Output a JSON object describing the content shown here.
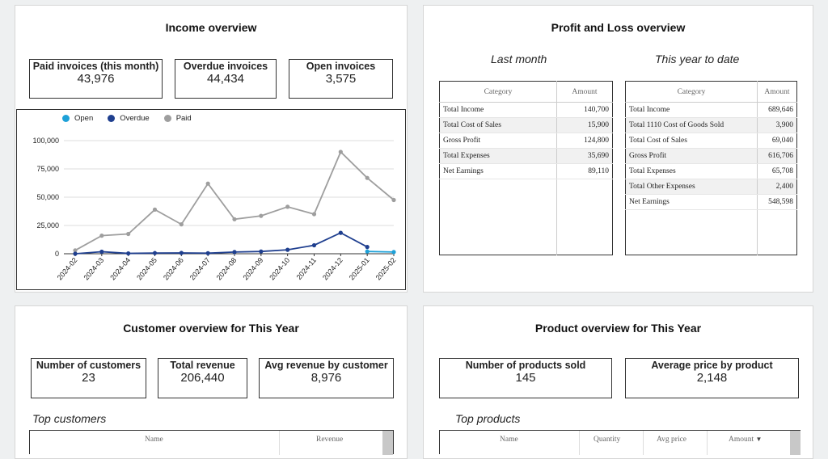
{
  "income": {
    "title": "Income overview",
    "kpis": [
      {
        "label": "Paid invoices (this month)",
        "value": "43,976"
      },
      {
        "label": "Overdue invoices",
        "value": "44,434"
      },
      {
        "label": "Open invoices",
        "value": "3,575"
      }
    ]
  },
  "pl": {
    "title": "Profit and Loss overview",
    "last_month_label": "Last month",
    "ytd_label": "This year to date",
    "col_category": "Category",
    "col_amount": "Amount",
    "last_month": [
      {
        "category": "Total Income",
        "amount": "140,700"
      },
      {
        "category": "Total Cost of Sales",
        "amount": "15,900"
      },
      {
        "category": "Gross Profit",
        "amount": "124,800"
      },
      {
        "category": "Total Expenses",
        "amount": "35,690"
      },
      {
        "category": "Net Earnings",
        "amount": "89,110"
      }
    ],
    "ytd": [
      {
        "category": "Total Income",
        "amount": "689,646"
      },
      {
        "category": "Total 1110 Cost of Goods Sold",
        "amount": "3,900"
      },
      {
        "category": "Total Cost of Sales",
        "amount": "69,040"
      },
      {
        "category": "Gross Profit",
        "amount": "616,706"
      },
      {
        "category": "Total Expenses",
        "amount": "65,708"
      },
      {
        "category": "Total Other Expenses",
        "amount": "2,400"
      },
      {
        "category": "Net Earnings",
        "amount": "548,598"
      }
    ]
  },
  "customer": {
    "title": "Customer overview for This Year",
    "kpis": [
      {
        "label": "Number of customers",
        "value": "23"
      },
      {
        "label": "Total revenue",
        "value": "206,440"
      },
      {
        "label": "Avg revenue by customer",
        "value": "8,976"
      }
    ],
    "top_label": "Top customers",
    "col_name": "Name",
    "col_revenue": "Revenue"
  },
  "product": {
    "title": "Product overview for This Year",
    "kpis": [
      {
        "label": "Number of products sold",
        "value": "145"
      },
      {
        "label": "Average price by product",
        "value": "2,148"
      }
    ],
    "top_label": "Top products",
    "col_name": "Name",
    "col_quantity": "Quantity",
    "col_avg_price": "Avg price",
    "col_amount": "Amount"
  },
  "colors": {
    "open": "#1ea1d8",
    "overdue": "#1f3f8f",
    "paid": "#9e9e9e"
  },
  "chart_data": {
    "type": "line",
    "x": [
      "2024-02",
      "2024-03",
      "2024-04",
      "2024-05",
      "2024-06",
      "2024-07",
      "2024-08",
      "2024-09",
      "2024-10",
      "2024-11",
      "2024-12",
      "2025-01",
      "2025-02"
    ],
    "ylim": [
      0,
      100000
    ],
    "yticks": [
      "0",
      "25,000",
      "50,000",
      "75,000",
      "100,000"
    ],
    "ytick_values": [
      0,
      25000,
      50000,
      75000,
      100000
    ],
    "legend_position": "top-left",
    "grid": true,
    "series": [
      {
        "name": "Open",
        "color": "#1ea1d8",
        "values": [
          null,
          null,
          null,
          null,
          null,
          null,
          null,
          null,
          null,
          null,
          null,
          2000,
          1500
        ]
      },
      {
        "name": "Overdue",
        "color": "#1f3f8f",
        "values": [
          0,
          1800,
          300,
          600,
          700,
          500,
          1500,
          2000,
          3500,
          7500,
          18500,
          6000,
          null
        ]
      },
      {
        "name": "Paid",
        "color": "#9e9e9e",
        "values": [
          3000,
          16000,
          17500,
          39000,
          26000,
          62000,
          30500,
          33500,
          41500,
          35000,
          90000,
          67000,
          47500
        ]
      }
    ]
  }
}
